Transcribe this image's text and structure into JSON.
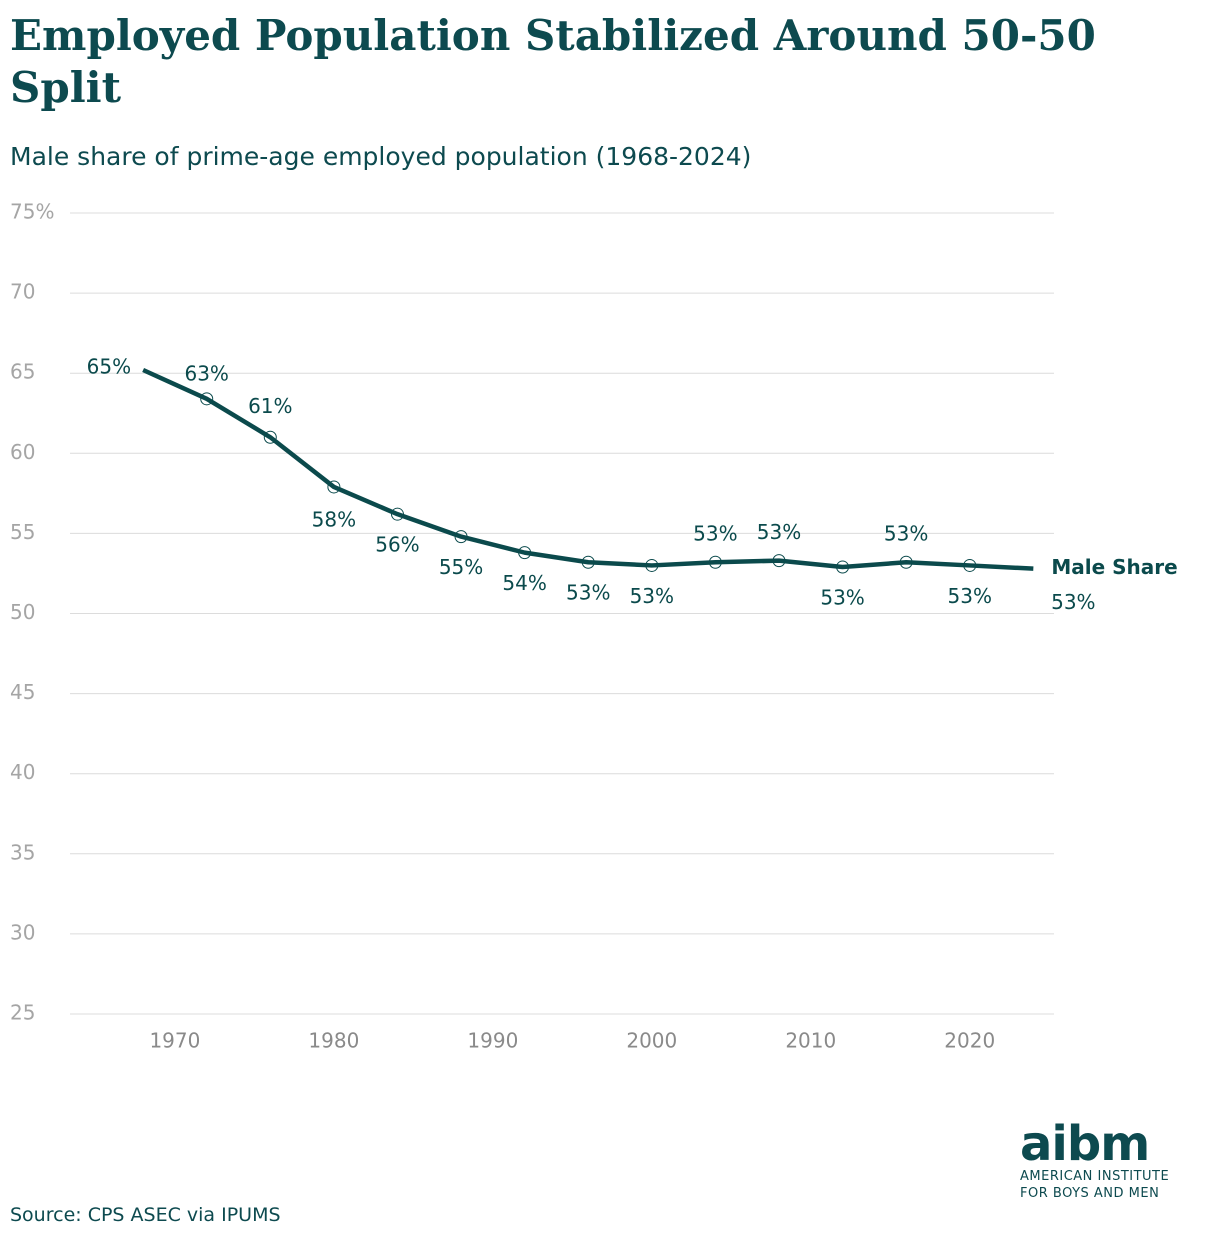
{
  "chart_data": {
    "type": "line",
    "title": "Employed Population Stabilized Around 50-50 Split",
    "subtitle": "Male share of prime-age employed population (1968-2024)",
    "source": "Source: CPS ASEC via IPUMS",
    "x": [
      1968,
      1972,
      1976,
      1980,
      1984,
      1988,
      1992,
      1996,
      2000,
      2004,
      2008,
      2012,
      2016,
      2020,
      2024
    ],
    "series": [
      {
        "name": "Male Share",
        "color": "#0b4a4c",
        "values": [
          65.2,
          63.4,
          61.0,
          57.9,
          56.2,
          54.8,
          53.8,
          53.2,
          53.0,
          53.2,
          53.3,
          52.9,
          53.2,
          53.0,
          52.8
        ],
        "value_labels": [
          "65%",
          "63%",
          "61%",
          "58%",
          "56%",
          "55%",
          "54%",
          "53%",
          "53%",
          "53%",
          "53%",
          "53%",
          "53%",
          "53%",
          "53%"
        ]
      }
    ],
    "xlim": [
      1963.4,
      2025.3
    ],
    "xticks": [
      1970,
      1980,
      1990,
      2000,
      2010,
      2020
    ],
    "ylim": [
      25,
      75
    ],
    "yticks": [
      {
        "value": 75,
        "label": "75%"
      },
      70,
      65,
      60,
      55,
      50,
      45,
      40,
      35,
      30,
      25
    ],
    "grid": true
  },
  "logo": {
    "mark": "aibm",
    "lines": [
      "AMERICAN INSTITUTE",
      "FOR BOYS AND MEN"
    ]
  }
}
